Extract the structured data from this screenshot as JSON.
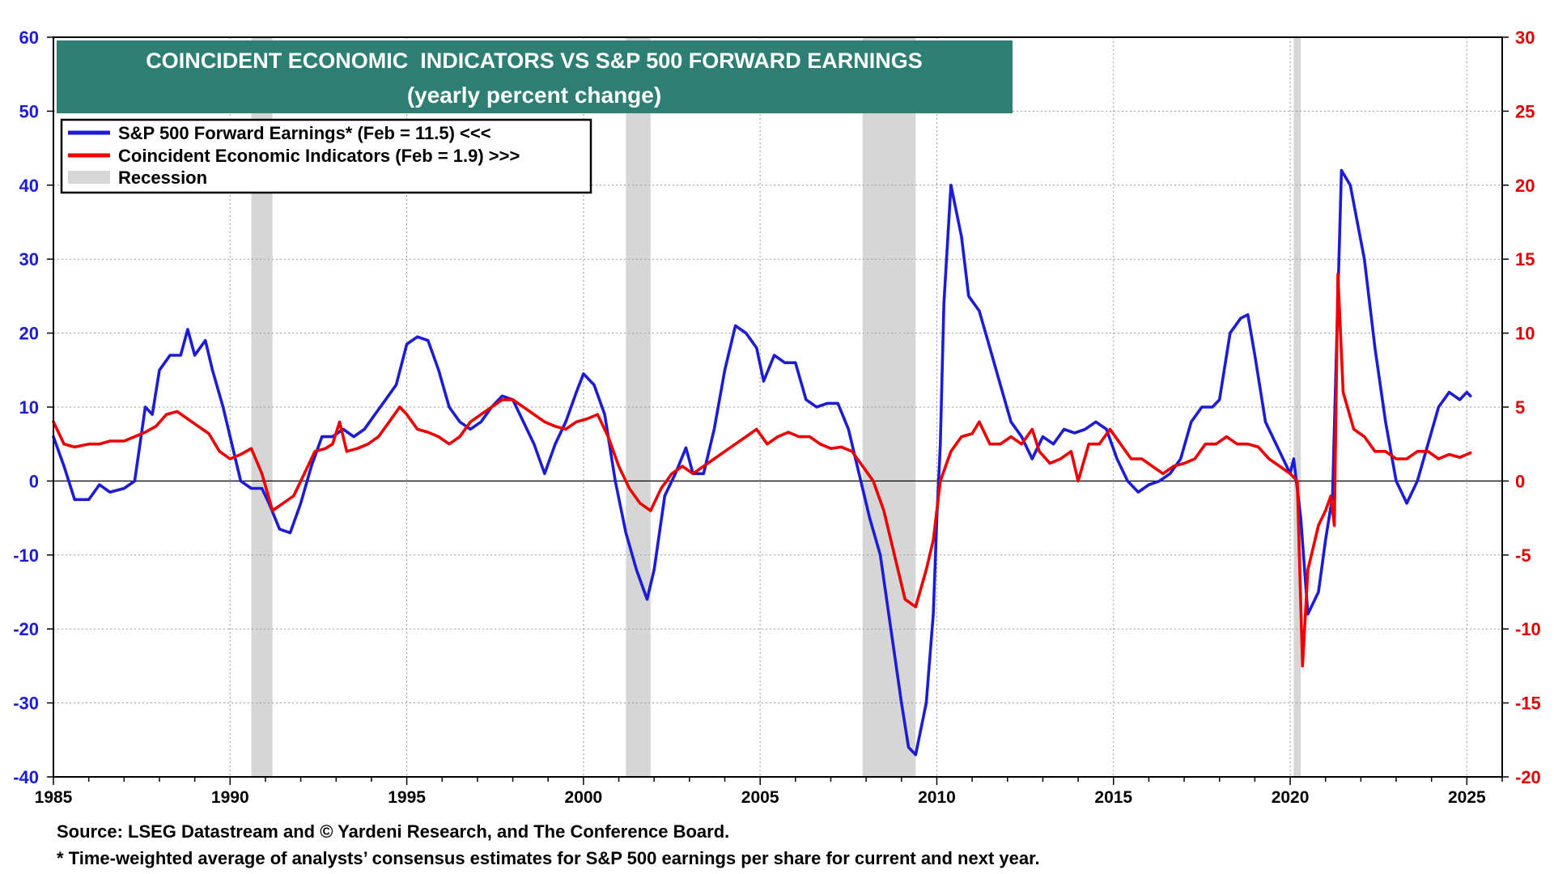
{
  "chart_data": {
    "type": "line",
    "title": "COINCIDENT ECONOMIC  INDICATORS VS S&P 500 FORWARD EARNINGS",
    "subtitle": "(yearly percent change)",
    "x_range": [
      1985,
      2026
    ],
    "x_ticks": [
      "1985",
      "1990",
      "1995",
      "2000",
      "2005",
      "2010",
      "2015",
      "2020",
      "2025"
    ],
    "y_left": {
      "range": [
        -40,
        60
      ],
      "ticks": [
        "60",
        "50",
        "40",
        "30",
        "20",
        "10",
        "0",
        "-10",
        "-20",
        "-30",
        "-40"
      ]
    },
    "y_right": {
      "range": [
        -20,
        30
      ],
      "ticks": [
        "30",
        "25",
        "20",
        "15",
        "10",
        "5",
        "0",
        "-5",
        "-10",
        "-15",
        "-20"
      ]
    },
    "grid": true,
    "legend": {
      "placement": "top-left",
      "entries": [
        {
          "label": "S&P 500 Forward Earnings* (Feb = 11.5) <<<",
          "color": "#1c1cd6",
          "kind": "line"
        },
        {
          "label": "Coincident Economic Indicators (Feb = 1.9) >>>",
          "color": "#ee0000",
          "kind": "line"
        },
        {
          "label": "Recession",
          "color": "#d6d6d6",
          "kind": "box"
        }
      ]
    },
    "recessions": [
      [
        1990.6,
        1991.2
      ],
      [
        2001.2,
        2001.9
      ],
      [
        2007.9,
        2009.4
      ],
      [
        2020.1,
        2020.3
      ]
    ],
    "series": [
      {
        "name": "S&P 500 Forward Earnings",
        "axis": "left",
        "color": "#1c1cd6",
        "points": [
          [
            1985.0,
            6
          ],
          [
            1985.3,
            2
          ],
          [
            1985.6,
            -2.5
          ],
          [
            1986.0,
            -2.5
          ],
          [
            1986.3,
            -0.5
          ],
          [
            1986.6,
            -1.5
          ],
          [
            1987.0,
            -1
          ],
          [
            1987.3,
            0
          ],
          [
            1987.6,
            10
          ],
          [
            1987.8,
            9
          ],
          [
            1988.0,
            15
          ],
          [
            1988.3,
            17
          ],
          [
            1988.6,
            17
          ],
          [
            1988.8,
            20.5
          ],
          [
            1989.0,
            17
          ],
          [
            1989.3,
            19
          ],
          [
            1989.5,
            15
          ],
          [
            1989.8,
            10
          ],
          [
            1990.0,
            6
          ],
          [
            1990.3,
            0
          ],
          [
            1990.6,
            -1
          ],
          [
            1990.9,
            -1
          ],
          [
            1991.1,
            -3
          ],
          [
            1991.4,
            -6.5
          ],
          [
            1991.7,
            -7
          ],
          [
            1992.0,
            -3
          ],
          [
            1992.3,
            2
          ],
          [
            1992.6,
            6
          ],
          [
            1992.9,
            6
          ],
          [
            1993.2,
            7
          ],
          [
            1993.5,
            6
          ],
          [
            1993.8,
            7
          ],
          [
            1994.1,
            9
          ],
          [
            1994.4,
            11
          ],
          [
            1994.7,
            13
          ],
          [
            1995.0,
            18.5
          ],
          [
            1995.3,
            19.5
          ],
          [
            1995.6,
            19
          ],
          [
            1995.9,
            15
          ],
          [
            1996.2,
            10
          ],
          [
            1996.5,
            8
          ],
          [
            1996.8,
            7
          ],
          [
            1997.1,
            8
          ],
          [
            1997.4,
            10
          ],
          [
            1997.7,
            11.5
          ],
          [
            1998.0,
            11
          ],
          [
            1998.3,
            8
          ],
          [
            1998.6,
            5
          ],
          [
            1998.9,
            1
          ],
          [
            1999.2,
            5
          ],
          [
            1999.5,
            8
          ],
          [
            1999.8,
            12
          ],
          [
            2000.0,
            14.5
          ],
          [
            2000.3,
            13
          ],
          [
            2000.6,
            9
          ],
          [
            2000.9,
            0
          ],
          [
            2001.2,
            -7
          ],
          [
            2001.5,
            -12
          ],
          [
            2001.8,
            -16
          ],
          [
            2002.0,
            -12
          ],
          [
            2002.3,
            -2
          ],
          [
            2002.6,
            1
          ],
          [
            2002.9,
            4.5
          ],
          [
            2003.1,
            1
          ],
          [
            2003.4,
            1
          ],
          [
            2003.7,
            7
          ],
          [
            2004.0,
            15
          ],
          [
            2004.3,
            21
          ],
          [
            2004.6,
            20
          ],
          [
            2004.9,
            18
          ],
          [
            2005.1,
            13.5
          ],
          [
            2005.4,
            17
          ],
          [
            2005.7,
            16
          ],
          [
            2006.0,
            16
          ],
          [
            2006.3,
            11
          ],
          [
            2006.6,
            10
          ],
          [
            2006.9,
            10.5
          ],
          [
            2007.2,
            10.5
          ],
          [
            2007.5,
            7
          ],
          [
            2007.8,
            1
          ],
          [
            2008.1,
            -5
          ],
          [
            2008.4,
            -10
          ],
          [
            2008.7,
            -20
          ],
          [
            2009.0,
            -30
          ],
          [
            2009.2,
            -36
          ],
          [
            2009.4,
            -37
          ],
          [
            2009.7,
            -30
          ],
          [
            2009.9,
            -18
          ],
          [
            2010.0,
            -5
          ],
          [
            2010.1,
            5
          ],
          [
            2010.2,
            24
          ],
          [
            2010.4,
            40
          ],
          [
            2010.7,
            33
          ],
          [
            2010.9,
            25
          ],
          [
            2011.2,
            23
          ],
          [
            2011.5,
            18
          ],
          [
            2011.8,
            13
          ],
          [
            2012.1,
            8
          ],
          [
            2012.4,
            6
          ],
          [
            2012.7,
            3
          ],
          [
            2013.0,
            6
          ],
          [
            2013.3,
            5
          ],
          [
            2013.6,
            7
          ],
          [
            2013.9,
            6.5
          ],
          [
            2014.2,
            7
          ],
          [
            2014.5,
            8
          ],
          [
            2014.8,
            7
          ],
          [
            2015.1,
            3
          ],
          [
            2015.4,
            0
          ],
          [
            2015.7,
            -1.5
          ],
          [
            2016.0,
            -0.5
          ],
          [
            2016.3,
            0
          ],
          [
            2016.6,
            1
          ],
          [
            2016.9,
            3
          ],
          [
            2017.2,
            8
          ],
          [
            2017.5,
            10
          ],
          [
            2017.8,
            10
          ],
          [
            2018.0,
            11
          ],
          [
            2018.3,
            20
          ],
          [
            2018.6,
            22
          ],
          [
            2018.8,
            22.5
          ],
          [
            2019.0,
            17
          ],
          [
            2019.3,
            8
          ],
          [
            2019.6,
            5
          ],
          [
            2019.9,
            2
          ],
          [
            2020.0,
            1
          ],
          [
            2020.1,
            3
          ],
          [
            2020.3,
            -5
          ],
          [
            2020.5,
            -18
          ],
          [
            2020.8,
            -15
          ],
          [
            2021.0,
            -8
          ],
          [
            2021.2,
            -2
          ],
          [
            2021.35,
            25
          ],
          [
            2021.45,
            42
          ],
          [
            2021.7,
            40
          ],
          [
            2021.9,
            35
          ],
          [
            2022.1,
            30
          ],
          [
            2022.4,
            18
          ],
          [
            2022.7,
            8
          ],
          [
            2023.0,
            0
          ],
          [
            2023.3,
            -3
          ],
          [
            2023.6,
            0
          ],
          [
            2023.9,
            5
          ],
          [
            2024.2,
            10
          ],
          [
            2024.5,
            12
          ],
          [
            2024.8,
            11
          ],
          [
            2025.0,
            12
          ],
          [
            2025.1,
            11.5
          ]
        ]
      },
      {
        "name": "Coincident Economic Indicators",
        "axis": "right",
        "color": "#ee0000",
        "points": [
          [
            1985.0,
            4
          ],
          [
            1985.3,
            2.5
          ],
          [
            1985.6,
            2.3
          ],
          [
            1986.0,
            2.5
          ],
          [
            1986.3,
            2.5
          ],
          [
            1986.6,
            2.7
          ],
          [
            1987.0,
            2.7
          ],
          [
            1987.3,
            3
          ],
          [
            1987.6,
            3.3
          ],
          [
            1987.9,
            3.7
          ],
          [
            1988.2,
            4.5
          ],
          [
            1988.5,
            4.7
          ],
          [
            1988.8,
            4.2
          ],
          [
            1989.1,
            3.7
          ],
          [
            1989.4,
            3.2
          ],
          [
            1989.7,
            2
          ],
          [
            1990.0,
            1.5
          ],
          [
            1990.3,
            1.8
          ],
          [
            1990.6,
            2.2
          ],
          [
            1990.9,
            0.5
          ],
          [
            1991.2,
            -2
          ],
          [
            1991.5,
            -1.5
          ],
          [
            1991.8,
            -1
          ],
          [
            1992.1,
            0.5
          ],
          [
            1992.4,
            2
          ],
          [
            1992.7,
            2.2
          ],
          [
            1992.9,
            2.5
          ],
          [
            1993.1,
            4
          ],
          [
            1993.3,
            2
          ],
          [
            1993.6,
            2.2
          ],
          [
            1993.9,
            2.5
          ],
          [
            1994.2,
            3
          ],
          [
            1994.5,
            4
          ],
          [
            1994.8,
            5
          ],
          [
            1995.0,
            4.5
          ],
          [
            1995.3,
            3.5
          ],
          [
            1995.6,
            3.3
          ],
          [
            1995.9,
            3
          ],
          [
            1996.2,
            2.5
          ],
          [
            1996.5,
            3
          ],
          [
            1996.8,
            4
          ],
          [
            1997.1,
            4.5
          ],
          [
            1997.4,
            5
          ],
          [
            1997.7,
            5.5
          ],
          [
            1998.0,
            5.5
          ],
          [
            1998.3,
            5
          ],
          [
            1998.6,
            4.5
          ],
          [
            1998.9,
            4
          ],
          [
            1999.2,
            3.7
          ],
          [
            1999.5,
            3.5
          ],
          [
            1999.8,
            4
          ],
          [
            2000.1,
            4.2
          ],
          [
            2000.4,
            4.5
          ],
          [
            2000.7,
            3
          ],
          [
            2001.0,
            1
          ],
          [
            2001.3,
            -0.5
          ],
          [
            2001.6,
            -1.5
          ],
          [
            2001.9,
            -2
          ],
          [
            2002.2,
            -0.5
          ],
          [
            2002.5,
            0.5
          ],
          [
            2002.8,
            1
          ],
          [
            2003.1,
            0.5
          ],
          [
            2003.4,
            1
          ],
          [
            2003.7,
            1.5
          ],
          [
            2004.0,
            2
          ],
          [
            2004.3,
            2.5
          ],
          [
            2004.6,
            3
          ],
          [
            2004.9,
            3.5
          ],
          [
            2005.2,
            2.5
          ],
          [
            2005.5,
            3
          ],
          [
            2005.8,
            3.3
          ],
          [
            2006.1,
            3
          ],
          [
            2006.4,
            3
          ],
          [
            2006.7,
            2.5
          ],
          [
            2007.0,
            2.2
          ],
          [
            2007.3,
            2.3
          ],
          [
            2007.6,
            2
          ],
          [
            2007.9,
            1
          ],
          [
            2008.2,
            0
          ],
          [
            2008.5,
            -2
          ],
          [
            2008.8,
            -5
          ],
          [
            2009.1,
            -8
          ],
          [
            2009.4,
            -8.5
          ],
          [
            2009.7,
            -6
          ],
          [
            2009.9,
            -4
          ],
          [
            2010.1,
            0
          ],
          [
            2010.4,
            2
          ],
          [
            2010.7,
            3
          ],
          [
            2011.0,
            3.2
          ],
          [
            2011.2,
            4
          ],
          [
            2011.5,
            2.5
          ],
          [
            2011.8,
            2.5
          ],
          [
            2012.1,
            3
          ],
          [
            2012.4,
            2.5
          ],
          [
            2012.7,
            3.5
          ],
          [
            2012.9,
            2
          ],
          [
            2013.2,
            1.2
          ],
          [
            2013.5,
            1.5
          ],
          [
            2013.8,
            2
          ],
          [
            2014.0,
            0
          ],
          [
            2014.3,
            2.5
          ],
          [
            2014.6,
            2.5
          ],
          [
            2014.9,
            3.5
          ],
          [
            2015.2,
            2.5
          ],
          [
            2015.5,
            1.5
          ],
          [
            2015.8,
            1.5
          ],
          [
            2016.1,
            1
          ],
          [
            2016.4,
            0.5
          ],
          [
            2016.7,
            1
          ],
          [
            2017.0,
            1.2
          ],
          [
            2017.3,
            1.5
          ],
          [
            2017.6,
            2.5
          ],
          [
            2017.9,
            2.5
          ],
          [
            2018.2,
            3
          ],
          [
            2018.5,
            2.5
          ],
          [
            2018.8,
            2.5
          ],
          [
            2019.1,
            2.3
          ],
          [
            2019.4,
            1.5
          ],
          [
            2019.7,
            1
          ],
          [
            2020.0,
            0.5
          ],
          [
            2020.2,
            0
          ],
          [
            2020.35,
            -12.5
          ],
          [
            2020.5,
            -6
          ],
          [
            2020.8,
            -3
          ],
          [
            2021.0,
            -2
          ],
          [
            2021.15,
            -1
          ],
          [
            2021.25,
            -3
          ],
          [
            2021.35,
            14
          ],
          [
            2021.5,
            6
          ],
          [
            2021.8,
            3.5
          ],
          [
            2022.1,
            3
          ],
          [
            2022.4,
            2
          ],
          [
            2022.7,
            2
          ],
          [
            2023.0,
            1.5
          ],
          [
            2023.3,
            1.5
          ],
          [
            2023.6,
            2
          ],
          [
            2023.9,
            2
          ],
          [
            2024.2,
            1.5
          ],
          [
            2024.5,
            1.8
          ],
          [
            2024.8,
            1.6
          ],
          [
            2025.0,
            1.8
          ],
          [
            2025.1,
            1.9
          ]
        ]
      }
    ],
    "notes": [
      "Source: LSEG Datastream and © Yardeni Research, and The Conference Board.",
      "* Time-weighted average of analysts’ consensus estimates for S&P 500 earnings per share for current and next year."
    ]
  },
  "colors": {
    "title_bg": "#2e7f73",
    "left_axis": "#1c1cd6",
    "right_axis": "#e00000",
    "recession": "#d6d6d6"
  }
}
